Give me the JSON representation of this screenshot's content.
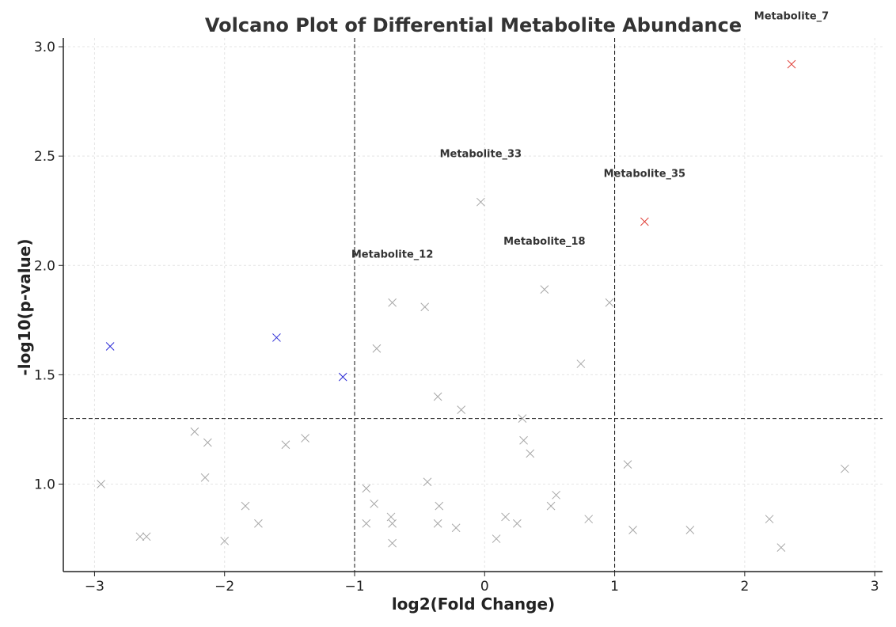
{
  "chart_data": {
    "type": "scatter",
    "title": "Volcano Plot of Differential Metabolite Abundance",
    "xlabel": "log2(Fold Change)",
    "ylabel": "-log10(p-value)",
    "xlim": [
      -3.24,
      3.06
    ],
    "ylim": [
      0.6,
      3.04
    ],
    "xticks": [
      -3,
      -2,
      -1,
      0,
      1,
      2,
      3
    ],
    "xtick_labels": [
      "−3",
      "−2",
      "−1",
      "0",
      "1",
      "2",
      "3"
    ],
    "yticks": [
      1.0,
      1.5,
      2.0,
      2.5,
      3.0
    ],
    "ytick_labels": [
      "1.0",
      "1.5",
      "2.0",
      "2.5",
      "3.0"
    ],
    "grid": true,
    "marker": "x",
    "thresholds": {
      "fold_change": [
        -1,
        1
      ],
      "neg_log10_p": 1.3
    },
    "colors": {
      "up": "#e0413a",
      "down": "#2b2bd6",
      "ns": "#a8a8a8",
      "threshold": "#111111"
    },
    "series": [
      {
        "group": "up",
        "points": [
          [
            2.36,
            2.92
          ],
          [
            1.23,
            2.2
          ]
        ]
      },
      {
        "group": "down",
        "points": [
          [
            -2.88,
            1.63
          ],
          [
            -1.6,
            1.67
          ],
          [
            -1.09,
            1.49
          ]
        ]
      },
      {
        "group": "ns",
        "points": [
          [
            -0.03,
            2.29
          ],
          [
            0.46,
            1.89
          ],
          [
            0.96,
            1.83
          ],
          [
            -0.71,
            1.83
          ],
          [
            -0.46,
            1.81
          ],
          [
            -0.83,
            1.62
          ],
          [
            0.74,
            1.55
          ],
          [
            -0.36,
            1.4
          ],
          [
            -0.18,
            1.34
          ],
          [
            0.29,
            1.3
          ],
          [
            0.3,
            1.2
          ],
          [
            0.35,
            1.14
          ],
          [
            -2.23,
            1.24
          ],
          [
            -2.13,
            1.19
          ],
          [
            -1.38,
            1.21
          ],
          [
            -1.53,
            1.18
          ],
          [
            -2.95,
            1.0
          ],
          [
            -2.15,
            1.03
          ],
          [
            -1.84,
            0.9
          ],
          [
            -1.74,
            0.82
          ],
          [
            -2.65,
            0.76
          ],
          [
            -2.6,
            0.76
          ],
          [
            -2.0,
            0.74
          ],
          [
            -0.91,
            0.98
          ],
          [
            -0.85,
            0.91
          ],
          [
            -0.91,
            0.82
          ],
          [
            -0.72,
            0.85
          ],
          [
            -0.71,
            0.82
          ],
          [
            -0.71,
            0.73
          ],
          [
            -0.44,
            1.01
          ],
          [
            -0.35,
            0.9
          ],
          [
            -0.36,
            0.82
          ],
          [
            -0.22,
            0.8
          ],
          [
            0.09,
            0.75
          ],
          [
            0.16,
            0.85
          ],
          [
            0.25,
            0.82
          ],
          [
            0.51,
            0.9
          ],
          [
            0.55,
            0.95
          ],
          [
            0.8,
            0.84
          ],
          [
            1.1,
            1.09
          ],
          [
            1.14,
            0.79
          ],
          [
            1.58,
            0.79
          ],
          [
            2.19,
            0.84
          ],
          [
            2.28,
            0.71
          ],
          [
            2.77,
            1.07
          ]
        ]
      }
    ],
    "annotations": [
      {
        "text": "Metabolite_7",
        "x": 2.36,
        "y": 2.92
      },
      {
        "text": "Metabolite_33",
        "x": -0.03,
        "y": 2.29
      },
      {
        "text": "Metabolite_35",
        "x": 1.23,
        "y": 2.2
      },
      {
        "text": "Metabolite_18",
        "x": 0.46,
        "y": 1.89
      },
      {
        "text": "Metabolite_12",
        "x": -0.71,
        "y": 1.83
      }
    ]
  }
}
